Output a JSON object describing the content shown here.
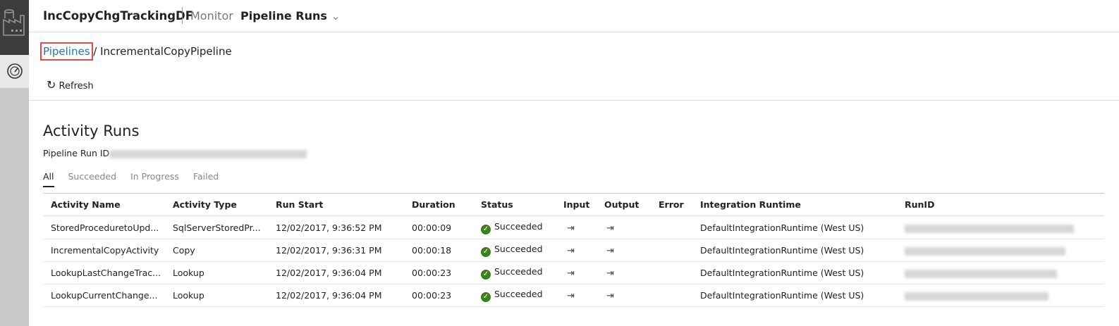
{
  "header": {
    "factory": "IncCopyChgTrackingDF",
    "section": "Monitor",
    "view": "Pipeline Runs"
  },
  "breadcrumb": {
    "root": "Pipelines",
    "current": "IncrementalCopyPipeline"
  },
  "toolbar": {
    "refresh": "Refresh"
  },
  "main": {
    "title": "Activity Runs",
    "run_id_label": "Pipeline Run ID",
    "tabs": [
      "All",
      "Succeeded",
      "In Progress",
      "Failed"
    ],
    "columns": [
      "Activity Name",
      "Activity Type",
      "Run Start",
      "Duration",
      "Status",
      "Input",
      "Output",
      "Error",
      "Integration Runtime",
      "RunID"
    ],
    "rows": [
      {
        "name": "StoredProceduretoUpd...",
        "type": "SqlServerStoredPr...",
        "start": "12/02/2017, 9:36:52 PM",
        "duration": "00:00:09",
        "status": "Succeeded",
        "runtime": "DefaultIntegrationRuntime (West US)"
      },
      {
        "name": "IncrementalCopyActivity",
        "type": "Copy",
        "start": "12/02/2017, 9:36:31 PM",
        "duration": "00:00:18",
        "status": "Succeeded",
        "runtime": "DefaultIntegrationRuntime (West US)"
      },
      {
        "name": "LookupLastChangeTrac...",
        "type": "Lookup",
        "start": "12/02/2017, 9:36:04 PM",
        "duration": "00:00:23",
        "status": "Succeeded",
        "runtime": "DefaultIntegrationRuntime (West US)"
      },
      {
        "name": "LookupCurrentChange...",
        "type": "Lookup",
        "start": "12/02/2017, 9:36:04 PM",
        "duration": "00:00:23",
        "status": "Succeeded",
        "runtime": "DefaultIntegrationRuntime (West US)"
      }
    ]
  },
  "colors": {
    "link": "#1a7ea6",
    "success": "#3f7f1e",
    "highlight": "#e04b4b"
  }
}
